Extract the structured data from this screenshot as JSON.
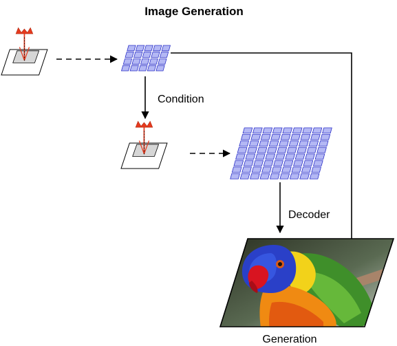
{
  "title": "Image Generation",
  "labels": {
    "condition": "Condition",
    "decoder": "Decoder",
    "generation": "Generation"
  },
  "grids": {
    "small": {
      "cols": 5,
      "rows": 4
    },
    "large": {
      "cols": 9,
      "rows": 8
    }
  },
  "colors": {
    "grid_cell_fill": "#b4b8f4",
    "grid_cell_stroke": "#2b30c8",
    "histogram_red": "#e63a1e",
    "line": "#000000"
  },
  "icons": {
    "input_small": "histogram-on-map-icon",
    "input_medium": "histogram-on-map-icon",
    "output_image": "parrot-image"
  }
}
